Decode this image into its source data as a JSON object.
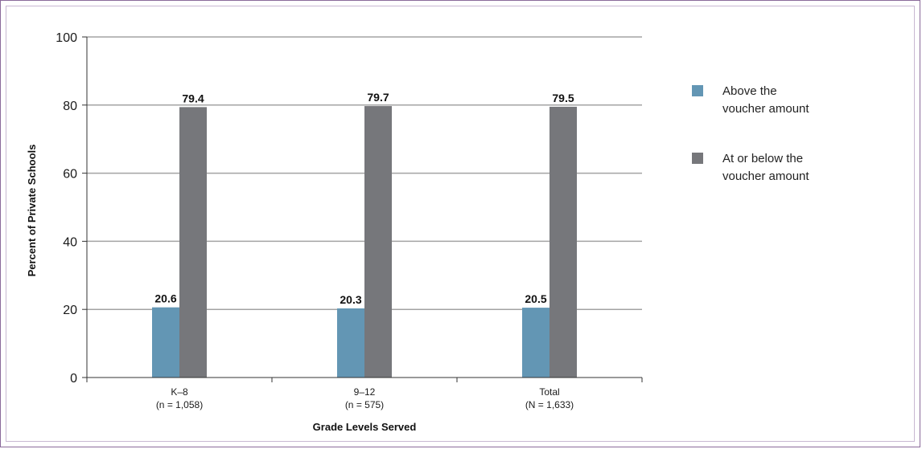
{
  "chart_data": {
    "type": "bar",
    "categories": [
      "K–8",
      "9–12",
      "Total"
    ],
    "category_notes": [
      "(n = 1,058)",
      "(n = 575)",
      "(N = 1,633)"
    ],
    "series": [
      {
        "name": "Above the voucher amount",
        "legend_lines": [
          "Above the",
          "voucher amount"
        ],
        "values": [
          20.6,
          20.3,
          20.5
        ],
        "labels": [
          "20.6",
          "20.3",
          "20.5"
        ],
        "color": "#6396b4"
      },
      {
        "name": "At or below the voucher amount",
        "legend_lines": [
          "At or below the",
          "voucher amount"
        ],
        "values": [
          79.4,
          79.7,
          79.5
        ],
        "labels": [
          "79.4",
          "79.7",
          "79.5"
        ],
        "color": "#76777b"
      }
    ],
    "xlabel": "Grade Levels Served",
    "ylabel": "Percent of Private Schools",
    "ylim": [
      0,
      100
    ],
    "yticks": [
      0,
      20,
      40,
      60,
      80,
      100
    ],
    "grid": true,
    "legend_position": "right"
  },
  "colors": {
    "gridline": "#a3a3a3",
    "axis": "#333333",
    "frame": "#8a6a9a"
  }
}
